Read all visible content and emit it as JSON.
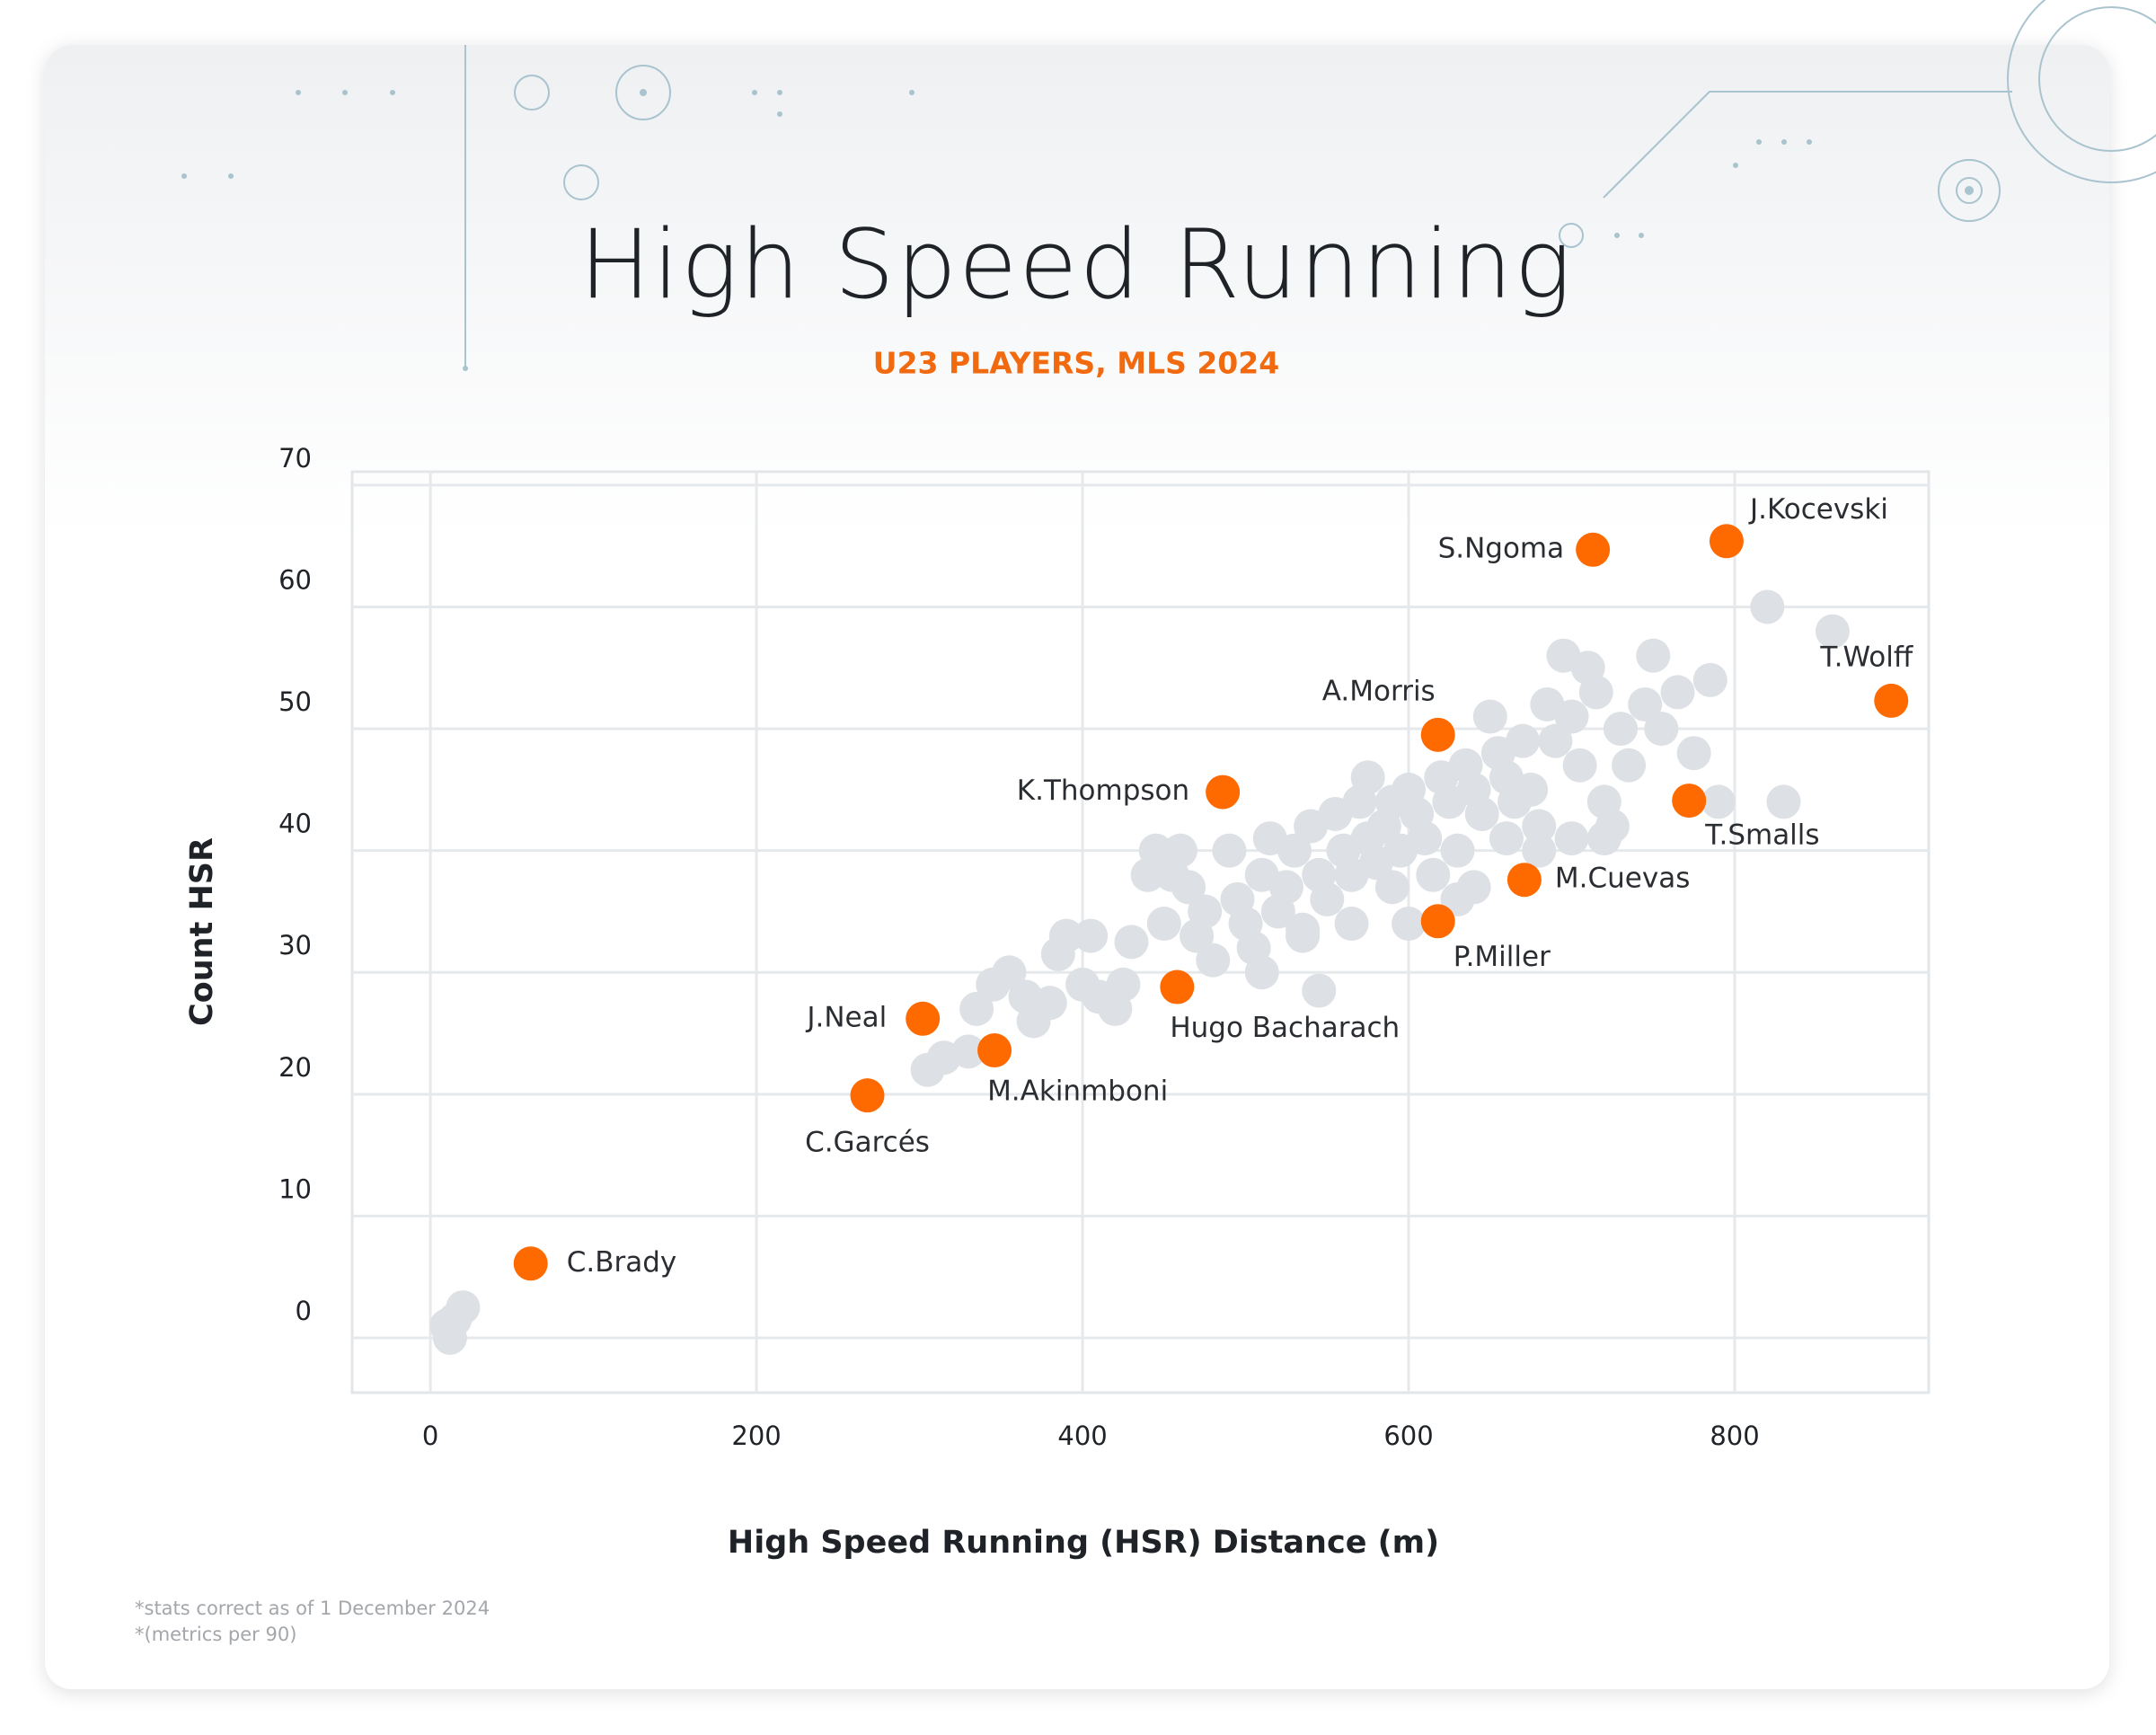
{
  "chart_data": {
    "type": "scatter",
    "title": "High Speed Running",
    "subtitle": "U23 PLAYERS, MLS 2024",
    "xlabel": "High Speed Running (HSR) Distance (m)",
    "ylabel": "Count HSR",
    "footnotes": [
      "*stats correct as of 1 December 2024",
      "*(metrics per 90)"
    ],
    "xlim": [
      -48,
      919
    ],
    "ylim": [
      -4.5,
      71.1
    ],
    "xticks": [
      0,
      200,
      400,
      600,
      800
    ],
    "yticks": [
      0,
      10,
      20,
      30,
      40,
      50,
      60,
      70
    ],
    "grid": true,
    "series": [
      {
        "color": "#dde0e4",
        "x": [
          10,
          12,
          20,
          15,
          305,
          315,
          330,
          335,
          345,
          355,
          365,
          370,
          380,
          385,
          400,
          405,
          410,
          420,
          425,
          430,
          440,
          445,
          450,
          455,
          460,
          465,
          470,
          475,
          480,
          490,
          495,
          500,
          505,
          510,
          510,
          515,
          520,
          525,
          530,
          535,
          540,
          545,
          550,
          555,
          560,
          565,
          570,
          575,
          580,
          585,
          590,
          595,
          600,
          605,
          610,
          615,
          620,
          625,
          630,
          635,
          640,
          645,
          650,
          655,
          660,
          665,
          670,
          675,
          680,
          685,
          690,
          695,
          700,
          705,
          710,
          715,
          720,
          725,
          730,
          735,
          745,
          750,
          755,
          765,
          775,
          785,
          790,
          820,
          830,
          860,
          545,
          565,
          535,
          590,
          600,
          640,
          575,
          700,
          720,
          680,
          660,
          630,
          390
        ],
        "values": [
          1,
          0,
          2.5,
          1.5,
          22,
          23,
          23.5,
          27,
          29,
          30,
          28,
          26,
          27.5,
          31.5,
          29,
          33,
          28,
          27,
          29,
          32.5,
          38,
          40,
          34,
          38,
          40,
          37,
          33,
          35,
          31,
          40,
          36,
          34,
          32,
          30,
          38,
          41,
          35,
          37,
          40,
          33,
          42,
          38,
          36,
          43,
          40,
          38,
          44,
          41,
          39,
          42,
          44,
          40,
          45,
          43,
          41,
          38,
          46,
          44,
          40,
          47,
          45,
          43,
          51,
          48,
          46,
          44,
          49,
          45,
          42,
          52,
          49,
          56,
          51,
          47,
          55,
          53,
          44,
          42,
          50,
          47,
          52,
          56,
          50,
          53,
          48,
          54,
          44,
          60,
          44,
          58,
          28.5,
          34,
          33.5,
          37,
          34,
          37,
          46,
          41,
          41,
          40,
          41,
          36,
          33
        ]
      },
      {
        "color": "#ff6a00",
        "labels": [
          "C.Brady",
          "C.Garcés",
          "J.Neal",
          "M.Akinmboni",
          "Hugo Bacharach",
          "K.Thompson",
          "A.Morris",
          "P.Miller",
          "M.Cuevas",
          "S.Ngoma",
          "J.Kocevski",
          "T.Smalls",
          "T.Wolff"
        ],
        "x": [
          61.5,
          268,
          302,
          346,
          458,
          486,
          618,
          618,
          671,
          713,
          795,
          772,
          896
        ],
        "values": [
          6.1,
          19.9,
          26.2,
          23.6,
          28.8,
          44.8,
          49.5,
          34.2,
          37.6,
          64.7,
          65.4,
          44.1,
          52.3
        ]
      }
    ]
  }
}
